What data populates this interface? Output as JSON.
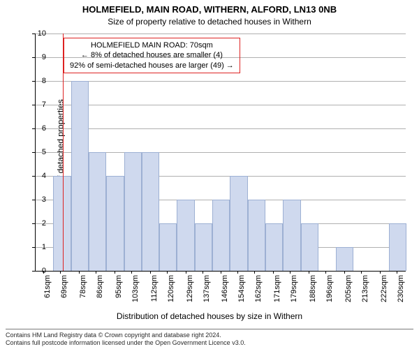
{
  "title_main": "HOLMEFIELD, MAIN ROAD, WITHERN, ALFORD, LN13 0NB",
  "title_sub": "Size of property relative to detached houses in Withern",
  "ylabel": "Number of detached properties",
  "xlabel": "Distribution of detached houses by size in Withern",
  "footer_line1": "Contains HM Land Registry data © Crown copyright and database right 2024.",
  "footer_line2": "Contains full postcode information licensed under the Open Government Licence v3.0.",
  "annotation": {
    "line1": "HOLMEFIELD MAIN ROAD: 70sqm",
    "line2": "← 8% of detached houses are smaller (4)",
    "line3": "92% of semi-detached houses are larger (49) →",
    "border_color": "#dd2222"
  },
  "chart": {
    "type": "histogram",
    "ylim": [
      0,
      10
    ],
    "ytick_step": 1,
    "grid_color": "#b0b0b0",
    "bar_fill": "#cfd9ee",
    "bar_stroke": "#9db0d3",
    "marker_value_sqm": 70,
    "marker_color": "#dd2222",
    "x_min_sqm": 57,
    "x_max_sqm": 234,
    "x_tick_start": 61,
    "x_tick_step": 8.45,
    "x_tick_count": 21,
    "x_tick_unit": "sqm",
    "bar_bin_width_sqm": 8.45,
    "values": [
      0,
      4,
      8,
      5,
      4,
      5,
      5,
      2,
      3,
      2,
      3,
      4,
      3,
      2,
      3,
      2,
      0,
      1,
      0,
      0,
      2
    ]
  },
  "colors": {
    "background": "#ffffff",
    "axis": "#000000",
    "text": "#000000"
  },
  "fonts": {
    "title_main_pt": 13,
    "title_sub_pt": 12,
    "axis_label_pt": 12,
    "tick_pt": 11,
    "annotation_pt": 11,
    "footer_pt": 9
  }
}
